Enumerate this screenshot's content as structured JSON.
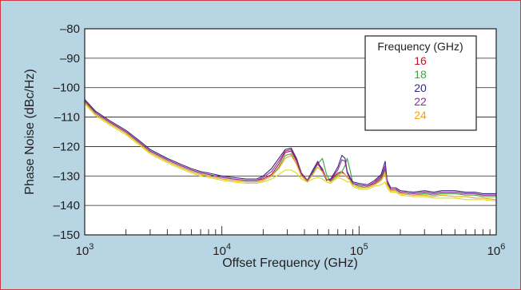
{
  "chart_data": {
    "type": "line",
    "title": "",
    "xlabel": "Offset Frequency (GHz)",
    "ylabel": "Phase Noise (dBc/Hz)",
    "x_scale": "log",
    "xlim": [
      1000,
      1000000
    ],
    "ylim": [
      -150,
      -80
    ],
    "x_ticks": [
      {
        "value": 1000,
        "base": "10",
        "exp": "3"
      },
      {
        "value": 10000,
        "base": "10",
        "exp": "4"
      },
      {
        "value": 100000,
        "base": "10",
        "exp": "5"
      },
      {
        "value": 1000000,
        "base": "10",
        "exp": "6"
      }
    ],
    "y_ticks": [
      {
        "value": -150,
        "label": "–150"
      },
      {
        "value": -140,
        "label": "–140"
      },
      {
        "value": -130,
        "label": "–130"
      },
      {
        "value": -120,
        "label": "–120"
      },
      {
        "value": -110,
        "label": "–110"
      },
      {
        "value": -100,
        "label": "–100"
      },
      {
        "value": -90,
        "label": "–90"
      },
      {
        "value": -80,
        "label": "–80"
      }
    ],
    "grid": "horizontal",
    "legend": {
      "title": "Frequency (GHz)",
      "placement": "top-right"
    },
    "x": [
      1000,
      1200,
      1500,
      2000,
      2500,
      3000,
      4000,
      5000,
      6000,
      7000,
      8000,
      10000,
      12000,
      15000,
      18000,
      20000,
      23000,
      26000,
      29000,
      32000,
      35000,
      38000,
      42000,
      46000,
      50000,
      54000,
      58000,
      62000,
      66000,
      70000,
      75000,
      79000,
      82000,
      86000,
      90000,
      100000,
      115000,
      130000,
      145000,
      155000,
      160000,
      170000,
      185000,
      200000,
      250000,
      300000,
      350000,
      400000,
      500000,
      600000,
      700000,
      800000,
      1000000
    ],
    "series": [
      {
        "name": "16",
        "color": "#c8102e",
        "values": [
          -104.5,
          -108.5,
          -111.5,
          -115,
          -118.5,
          -121.5,
          -124.5,
          -126.5,
          -128,
          -129,
          -129.5,
          -130.5,
          -131,
          -131.5,
          -131.5,
          -131,
          -129.5,
          -126,
          -122,
          -121.5,
          -125,
          -129.5,
          -131.5,
          -128.5,
          -126,
          -128,
          -131,
          -131.5,
          -130,
          -129,
          -128.5,
          -129.5,
          -130.5,
          -131,
          -132.5,
          -133,
          -133.5,
          -132.5,
          -130.5,
          -127.5,
          -132,
          -134.5,
          -134.5,
          -135.5,
          -136,
          -135.5,
          -136,
          -135.5,
          -135.5,
          -136,
          -136,
          -136.5,
          -136.5
        ]
      },
      {
        "name": "18",
        "color": "#3aa63a",
        "values": [
          -105,
          -109,
          -112,
          -115.5,
          -119,
          -122,
          -125,
          -127,
          -128.5,
          -129.5,
          -130,
          -131,
          -131.5,
          -132,
          -132,
          -131.5,
          -130,
          -127,
          -123,
          -122.5,
          -126,
          -130,
          -132,
          -129,
          -126,
          -124,
          -129.5,
          -132,
          -130.5,
          -129.5,
          -128.5,
          -126.5,
          -124,
          -128,
          -132.5,
          -133.5,
          -134,
          -133,
          -131,
          -128,
          -132.5,
          -135,
          -135,
          -136,
          -136.5,
          -136,
          -136.5,
          -136,
          -136,
          -136.5,
          -136.5,
          -137,
          -137
        ]
      },
      {
        "name": "20",
        "color": "#33287a",
        "values": [
          -104,
          -108,
          -111,
          -114.5,
          -118,
          -121,
          -124,
          -126,
          -127.5,
          -128.5,
          -129,
          -130,
          -130.5,
          -131,
          -131,
          -130,
          -127.5,
          -124,
          -121,
          -120.5,
          -124,
          -129,
          -131.5,
          -128,
          -125,
          -128.5,
          -131.5,
          -131,
          -129,
          -127,
          -123,
          -124,
          -128.5,
          -130.5,
          -132,
          -132.5,
          -133,
          -131.5,
          -129.5,
          -125,
          -131.5,
          -134,
          -134,
          -135,
          -135.5,
          -135,
          -135.5,
          -135,
          -135,
          -135.5,
          -135.5,
          -136,
          -136
        ]
      },
      {
        "name": "22",
        "color": "#8b2c9b",
        "values": [
          -104.5,
          -108.5,
          -111.5,
          -115,
          -118.5,
          -121.5,
          -124.5,
          -126.5,
          -128,
          -129,
          -129.5,
          -130.5,
          -131,
          -131.5,
          -131.5,
          -130.5,
          -128.5,
          -125,
          -121.5,
          -121,
          -124.5,
          -129,
          -131.5,
          -128.5,
          -125.5,
          -127.5,
          -131,
          -131.5,
          -129.5,
          -128,
          -124.5,
          -125,
          -129,
          -131,
          -132.5,
          -133,
          -133.5,
          -132,
          -130,
          -126.5,
          -132,
          -134.5,
          -134.5,
          -135.5,
          -136,
          -135.5,
          -136,
          -135.5,
          -135.5,
          -136,
          -136,
          -136.5,
          -136.5
        ]
      },
      {
        "name": "24",
        "color": "#f3a21b",
        "values": [
          -105,
          -109,
          -112,
          -115.5,
          -119,
          -122,
          -125,
          -127,
          -128.5,
          -129.5,
          -130,
          -131,
          -131.5,
          -132,
          -132,
          -131.5,
          -130,
          -127.5,
          -124,
          -123,
          -126,
          -130,
          -132,
          -129.5,
          -127,
          -128.5,
          -131,
          -132,
          -131,
          -130,
          -129,
          -129.5,
          -130.5,
          -131.5,
          -133,
          -134,
          -134,
          -133,
          -131.5,
          -129,
          -133,
          -135,
          -135,
          -136,
          -136.5,
          -136.5,
          -137,
          -136.5,
          -137,
          -137,
          -137.5,
          -137.5,
          -138
        ]
      },
      {
        "name": "",
        "color": "#d7dc1f",
        "values": [
          -105.5,
          -109.5,
          -112.5,
          -116,
          -119.5,
          -122.5,
          -125.5,
          -127.5,
          -129,
          -130,
          -130.5,
          -131.5,
          -132,
          -132.5,
          -132.5,
          -132,
          -131,
          -129.5,
          -128,
          -128,
          -129,
          -131,
          -132,
          -131,
          -130.5,
          -131,
          -132,
          -132.5,
          -131.5,
          -130.5,
          -131,
          -131.5,
          -132,
          -132,
          -133.5,
          -134.5,
          -134.5,
          -133.5,
          -133,
          -132,
          -134,
          -135.5,
          -135.5,
          -136.5,
          -137,
          -137,
          -137.5,
          -137.5,
          -137.5,
          -138,
          -138,
          -138,
          -138.5
        ]
      }
    ]
  }
}
